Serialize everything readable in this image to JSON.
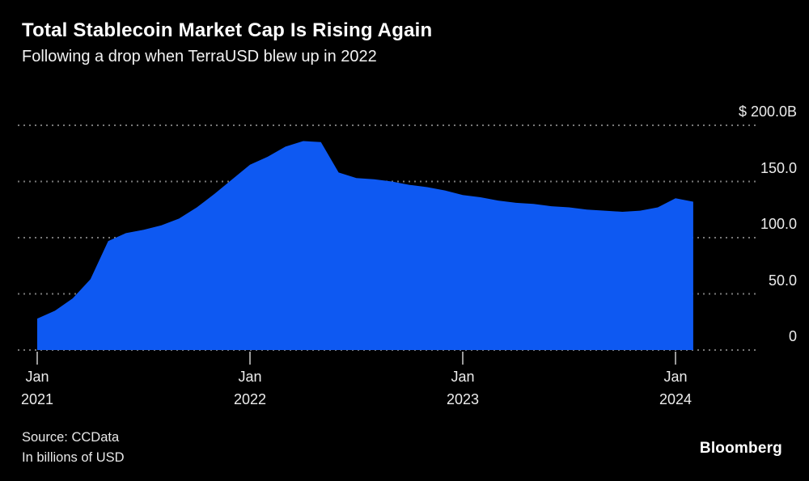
{
  "header": {
    "title": "Total Stablecoin Market Cap Is Rising Again",
    "subtitle": "Following a drop when TerraUSD blew up in 2022"
  },
  "footer": {
    "source_line1": "Source: CCData",
    "source_line2": "In billions of USD",
    "brand": "Bloomberg"
  },
  "chart_data": {
    "type": "area",
    "title": "Total Stablecoin Market Cap Is Rising Again",
    "subtitle": "Following a drop when TerraUSD blew up in 2022",
    "unit": "billions of USD",
    "ylim": [
      0,
      200
    ],
    "grid": "dotted horizontal lines, labels on right",
    "legend": "none",
    "x": [
      "2021-01",
      "2021-02",
      "2021-03",
      "2021-04",
      "2021-05",
      "2021-06",
      "2021-07",
      "2021-08",
      "2021-09",
      "2021-10",
      "2021-11",
      "2021-12",
      "2022-01",
      "2022-02",
      "2022-03",
      "2022-04",
      "2022-05",
      "2022-06",
      "2022-07",
      "2022-08",
      "2022-09",
      "2022-10",
      "2022-11",
      "2022-12",
      "2023-01",
      "2023-02",
      "2023-03",
      "2023-04",
      "2023-05",
      "2023-06",
      "2023-07",
      "2023-08",
      "2023-09",
      "2023-10",
      "2023-11",
      "2023-12",
      "2024-01",
      "2024-02"
    ],
    "series": [
      {
        "name": "Total stablecoin market cap ($B)",
        "values": [
          28,
          35,
          46,
          63,
          97,
          104,
          107,
          111,
          117,
          127,
          139,
          152,
          165,
          172,
          181,
          186,
          185,
          158,
          153,
          152,
          150,
          147,
          145,
          142,
          138,
          136,
          133,
          131,
          130,
          128,
          127,
          125,
          124,
          123,
          124,
          127,
          135,
          132
        ]
      }
    ],
    "y_ticks": [
      {
        "value": 0,
        "label": "0"
      },
      {
        "value": 50,
        "label": "50.0"
      },
      {
        "value": 100,
        "label": "100.0"
      },
      {
        "value": 150,
        "label": "150.0"
      },
      {
        "value": 200,
        "label": "$ 200.0B"
      }
    ],
    "x_ticks": [
      {
        "month_index": 0,
        "line1": "Jan",
        "line2": "2021"
      },
      {
        "month_index": 12,
        "line1": "Jan",
        "line2": "2022"
      },
      {
        "month_index": 24,
        "line1": "Jan",
        "line2": "2023"
      },
      {
        "month_index": 36,
        "line1": "Jan",
        "line2": "2024"
      }
    ],
    "colors": {
      "area": "#0e59f2",
      "background": "#000000",
      "grid": "#787878",
      "tick": "#9a9a9a",
      "text": "#ececec"
    }
  }
}
